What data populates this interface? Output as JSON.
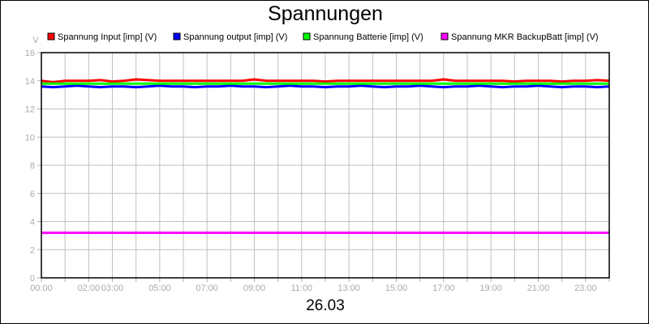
{
  "chart_data": {
    "type": "line",
    "title": "Spannungen",
    "xlabel": "26.03",
    "ylabel": "V",
    "ylim": [
      0,
      16
    ],
    "yticks": [
      "0",
      "2",
      "4",
      "6",
      "8",
      "10",
      "12",
      "14",
      "16"
    ],
    "xlim_hours": [
      0,
      24
    ],
    "xtick_labels": [
      {
        "h": 0,
        "label": "00:00"
      },
      {
        "h": 2,
        "label": "02:00"
      },
      {
        "h": 3,
        "label": "03:00"
      },
      {
        "h": 5,
        "label": "05:00"
      },
      {
        "h": 7,
        "label": "07:00"
      },
      {
        "h": 9,
        "label": "09:00"
      },
      {
        "h": 11,
        "label": "11:00"
      },
      {
        "h": 13,
        "label": "13:00"
      },
      {
        "h": 15,
        "label": "15:00"
      },
      {
        "h": 17,
        "label": "17:00"
      },
      {
        "h": 19,
        "label": "19:00"
      },
      {
        "h": 21,
        "label": "21:00"
      },
      {
        "h": 23,
        "label": "23:00"
      }
    ],
    "grid": true,
    "legend_position": "top",
    "x_hours": [
      0,
      0.5,
      1,
      1.5,
      2,
      2.5,
      3,
      3.5,
      4,
      4.5,
      5,
      5.5,
      6,
      6.5,
      7,
      7.5,
      8,
      8.5,
      9,
      9.5,
      10,
      10.5,
      11,
      11.5,
      12,
      12.5,
      13,
      13.5,
      14,
      14.5,
      15,
      15.5,
      16,
      16.5,
      17,
      17.5,
      18,
      18.5,
      19,
      19.5,
      20,
      20.5,
      21,
      21.5,
      22,
      22.5,
      23,
      23.5,
      24
    ],
    "series": [
      {
        "name": "Spannung Input [imp] (V)",
        "color": "#ff0000",
        "values": [
          14.0,
          13.9,
          14.0,
          14.0,
          14.0,
          14.05,
          13.95,
          14.0,
          14.1,
          14.05,
          14.0,
          14.0,
          14.0,
          14.0,
          14.0,
          14.0,
          14.0,
          14.0,
          14.1,
          14.0,
          14.0,
          14.0,
          14.0,
          14.0,
          13.95,
          14.0,
          14.0,
          14.0,
          14.0,
          14.0,
          14.0,
          14.0,
          14.0,
          14.0,
          14.1,
          14.0,
          14.0,
          14.0,
          14.0,
          14.0,
          13.95,
          14.0,
          14.0,
          14.0,
          13.95,
          14.0,
          14.0,
          14.05,
          14.0
        ]
      },
      {
        "name": "Spannung output [imp] (V)",
        "color": "#0000ff",
        "values": [
          13.6,
          13.55,
          13.6,
          13.65,
          13.6,
          13.55,
          13.6,
          13.6,
          13.55,
          13.6,
          13.65,
          13.6,
          13.6,
          13.55,
          13.6,
          13.6,
          13.65,
          13.6,
          13.6,
          13.55,
          13.6,
          13.65,
          13.6,
          13.6,
          13.55,
          13.6,
          13.6,
          13.65,
          13.6,
          13.55,
          13.6,
          13.6,
          13.65,
          13.6,
          13.55,
          13.6,
          13.6,
          13.65,
          13.6,
          13.55,
          13.6,
          13.6,
          13.65,
          13.6,
          13.55,
          13.6,
          13.6,
          13.55,
          13.6
        ]
      },
      {
        "name": "Spannung Batterie [imp] (V)",
        "color": "#00ff00",
        "values": [
          13.8,
          13.8,
          13.8,
          13.8,
          13.8,
          13.8,
          13.8,
          13.8,
          13.8,
          13.8,
          13.8,
          13.8,
          13.8,
          13.8,
          13.8,
          13.8,
          13.8,
          13.8,
          13.8,
          13.8,
          13.8,
          13.8,
          13.8,
          13.8,
          13.8,
          13.8,
          13.8,
          13.8,
          13.8,
          13.8,
          13.8,
          13.8,
          13.8,
          13.8,
          13.8,
          13.8,
          13.8,
          13.8,
          13.8,
          13.8,
          13.8,
          13.8,
          13.8,
          13.8,
          13.8,
          13.8,
          13.8,
          13.8,
          13.8
        ]
      },
      {
        "name": "Spannung MKR BackupBatt [imp] (V)",
        "color": "#ff00ff",
        "values": [
          3.2,
          3.2,
          3.2,
          3.2,
          3.2,
          3.2,
          3.2,
          3.2,
          3.2,
          3.2,
          3.2,
          3.2,
          3.2,
          3.2,
          3.2,
          3.2,
          3.2,
          3.2,
          3.2,
          3.2,
          3.2,
          3.2,
          3.2,
          3.2,
          3.2,
          3.2,
          3.2,
          3.2,
          3.2,
          3.2,
          3.2,
          3.2,
          3.2,
          3.2,
          3.2,
          3.2,
          3.2,
          3.2,
          3.2,
          3.2,
          3.2,
          3.2,
          3.2,
          3.2,
          3.2,
          3.2,
          3.2,
          3.2,
          3.2
        ]
      }
    ]
  }
}
